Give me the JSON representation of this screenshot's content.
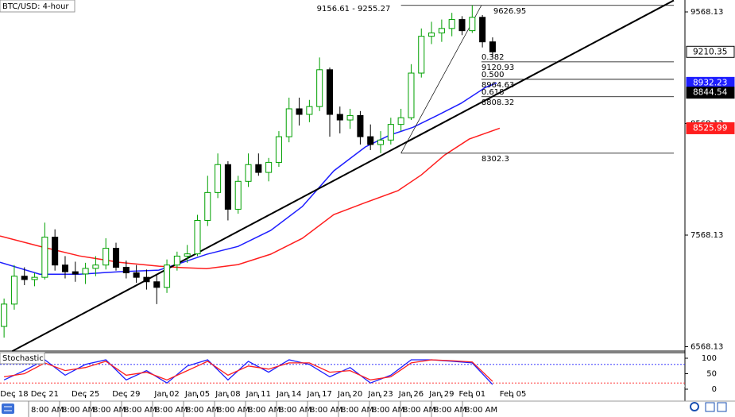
{
  "chart_data": {
    "type": "candlestick",
    "title": "BTC/USD: 4-hour",
    "up_color": "#00a000",
    "down_color": "#000000",
    "x": [
      -1,
      0,
      1,
      2,
      3,
      4,
      5,
      6,
      7,
      8,
      9,
      10,
      11,
      12,
      13,
      14,
      15,
      16,
      17,
      18,
      19,
      20,
      21,
      22,
      23,
      24,
      25,
      26,
      27,
      28,
      29,
      30,
      31,
      32,
      33,
      34,
      35,
      36,
      37,
      38,
      39,
      40,
      41,
      42,
      43,
      44,
      45,
      46,
      47
    ],
    "open": [
      6750,
      6950,
      7200,
      7170,
      7190,
      7550,
      7300,
      7240,
      7220,
      7270,
      7300,
      7450,
      7280,
      7230,
      7190,
      7150,
      7100,
      7300,
      7380,
      7400,
      7700,
      7950,
      8200,
      7800,
      8050,
      8200,
      8130,
      8220,
      8450,
      8700,
      8650,
      8720,
      9050,
      8650,
      8600,
      8640,
      8450,
      8380,
      8420,
      8560,
      8620,
      9020,
      9350,
      9380,
      9420,
      9500,
      9400,
      9520,
      9300
    ],
    "high": [
      7000,
      7300,
      7280,
      7230,
      7680,
      7620,
      7380,
      7330,
      7320,
      7380,
      7540,
      7500,
      7340,
      7300,
      7260,
      7220,
      7350,
      7420,
      7480,
      7750,
      8100,
      8300,
      8230,
      8100,
      8300,
      8300,
      8260,
      8500,
      8800,
      8800,
      8780,
      9160,
      9070,
      8720,
      8700,
      8680,
      8560,
      8500,
      8620,
      8700,
      9100,
      9420,
      9480,
      9500,
      9560,
      9530,
      9626.95,
      9540,
      9340
    ],
    "low": [
      6650,
      6900,
      7120,
      7110,
      7170,
      7250,
      7180,
      7150,
      7130,
      7200,
      7260,
      7250,
      7180,
      7140,
      7080,
      6950,
      7050,
      7250,
      7320,
      7380,
      7650,
      7900,
      7700,
      7760,
      8000,
      8100,
      8050,
      8180,
      8400,
      8550,
      8580,
      8680,
      8450,
      8480,
      8520,
      8380,
      8330,
      8302.3,
      8380,
      8500,
      8600,
      8980,
      9280,
      9300,
      9350,
      9360,
      9380,
      9250,
      9160
    ],
    "close": [
      6950,
      7200,
      7170,
      7190,
      7550,
      7300,
      7240,
      7220,
      7270,
      7300,
      7450,
      7280,
      7230,
      7190,
      7150,
      7100,
      7300,
      7380,
      7400,
      7700,
      7950,
      8200,
      7800,
      8050,
      8200,
      8130,
      8220,
      8450,
      8700,
      8650,
      8720,
      9050,
      8650,
      8600,
      8640,
      8450,
      8380,
      8420,
      8560,
      8620,
      9020,
      9350,
      9380,
      9420,
      9500,
      9400,
      9520,
      9300,
      9210.35
    ],
    "xlim": [
      -1.4,
      65.9
    ],
    "ylim": [
      6529,
      9675
    ],
    "yticks": [
      6568.13,
      7568.13,
      8568.13,
      9568.13
    ],
    "xticks": [
      {
        "value": 0,
        "label": "Dec 18"
      },
      {
        "value": 3,
        "label": "Dec 21"
      },
      {
        "value": 7,
        "label": "Dec 25"
      },
      {
        "value": 11,
        "label": "Dec 29"
      },
      {
        "value": 15,
        "label": "Jan 02"
      },
      {
        "value": 18,
        "label": "Jan 05"
      },
      {
        "value": 21,
        "label": "Jan 08"
      },
      {
        "value": 24,
        "label": "Jan 11"
      },
      {
        "value": 27,
        "label": "Jan 14"
      },
      {
        "value": 30,
        "label": "Jan 17"
      },
      {
        "value": 33,
        "label": "Jan 20"
      },
      {
        "value": 36,
        "label": "Jan 23"
      },
      {
        "value": 39,
        "label": "Jan 26"
      },
      {
        "value": 42,
        "label": "Jan 29"
      },
      {
        "value": 45,
        "label": "Feb 01"
      },
      {
        "value": 49,
        "label": "Feb 05"
      }
    ],
    "overlays": [
      {
        "color": "#1e1eff",
        "x": [
          -1.4,
          2.5,
          6.4,
          10.3,
          14.2,
          16.6,
          18.9,
          22.0,
          25.2,
          28.3,
          31.4,
          34.5,
          36.9,
          39.2,
          41.6,
          43.9,
          46.3,
          47.4
        ],
        "values": [
          7325,
          7218,
          7218,
          7240,
          7254,
          7325,
          7396,
          7467,
          7610,
          7824,
          8144,
          8358,
          8464,
          8535,
          8642,
          8749,
          8892,
          8932.23
        ]
      },
      {
        "color": "#ff1e1e",
        "x": [
          -1.4,
          2.5,
          6.4,
          10.3,
          14.2,
          16.6,
          18.9,
          22.0,
          25.2,
          28.3,
          31.4,
          34.5,
          37.7,
          40.0,
          42.3,
          44.7,
          47.7
        ],
        "values": [
          7560,
          7468,
          7382,
          7325,
          7290,
          7276,
          7268,
          7304,
          7397,
          7539,
          7752,
          7859,
          7966,
          8108,
          8286,
          8429,
          8525.99
        ]
      }
    ],
    "trendline": {
      "color": "#000000",
      "x": [
        -0.2,
        47.7
      ],
      "values": [
        6528,
        8844.54
      ]
    },
    "fib": {
      "x_low": 38.0,
      "x_high": 45.9,
      "high": 9626.95,
      "low": 8302.3,
      "range_text": "9156.61 - 9255.27",
      "levels": [
        {
          "ratio": "0.382",
          "value": 9120.93
        },
        {
          "ratio": "0.500",
          "value": 8964.63
        },
        {
          "ratio": "0.618",
          "value": 8808.32
        }
      ]
    },
    "indicator": {
      "title": "Stochastic",
      "k_color": "#1e1eff",
      "d_color": "#ff1e1e",
      "x": [
        -1,
        1,
        3,
        5,
        7,
        9,
        11,
        13,
        15,
        17,
        19,
        21,
        23,
        25,
        27,
        29,
        31,
        33,
        35,
        37,
        39,
        41,
        43,
        45,
        47
      ],
      "k": [
        30,
        60,
        95,
        45,
        80,
        95,
        30,
        60,
        20,
        75,
        95,
        30,
        90,
        55,
        95,
        80,
        40,
        70,
        20,
        45,
        95,
        95,
        90,
        85,
        15
      ],
      "d": [
        40,
        50,
        85,
        60,
        70,
        90,
        45,
        55,
        30,
        60,
        90,
        45,
        75,
        65,
        85,
        85,
        55,
        60,
        30,
        40,
        85,
        95,
        92,
        88,
        25
      ],
      "ylim": [
        -18,
        118
      ],
      "yticks": [
        0,
        50,
        100
      ],
      "levels": [
        80,
        20
      ]
    },
    "time_labels": [
      "8:00 AM",
      "8:00 AM",
      "8:00 AM",
      "8:00 AM",
      "8:00 AM",
      "8:00 AM",
      "8:00 AM",
      "8:00 AM",
      "8:00 AM",
      "8:00 AM",
      "8:00 AM",
      "8:00 AM",
      "8:00 AM",
      "8:00 AM",
      "8:00 AM"
    ]
  }
}
